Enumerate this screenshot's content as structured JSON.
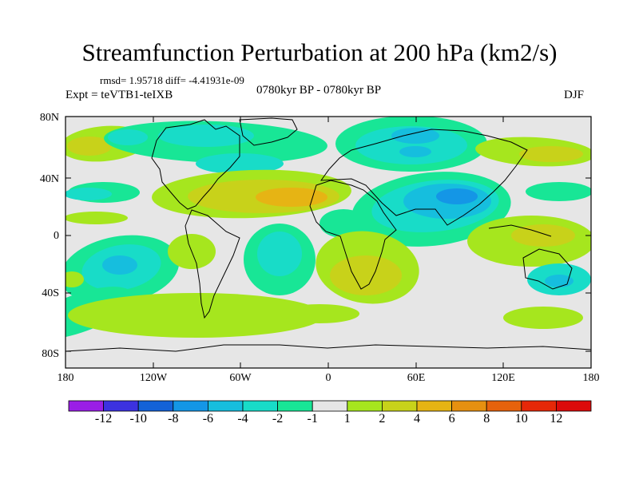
{
  "title": "Streamfunction Perturbation at 200 hPa (km2/s)",
  "stats": "rmsd= 1.95718 diff= -4.41931e-09",
  "experiment": "Expt = teVTB1-teIXB",
  "period": "0780kyr BP - 0780kyr BP",
  "season": "DJF",
  "map": {
    "lat_ticks": [
      "80N",
      "40N",
      "0",
      "40S",
      "80S"
    ],
    "lon_ticks": [
      "180",
      "120W",
      "60W",
      "0",
      "60E",
      "120E",
      "180"
    ]
  },
  "colorbar": {
    "labels": [
      "-12",
      "-10",
      "-8",
      "-6",
      "-4",
      "-2",
      "-1",
      "1",
      "2",
      "4",
      "6",
      "8",
      "10",
      "12"
    ],
    "colors": [
      "#9a1ee6",
      "#3c32e0",
      "#1462d8",
      "#1496e6",
      "#16bede",
      "#18dcc8",
      "#18e696",
      "#e6e6e6",
      "#a6e61e",
      "#c8d21a",
      "#e6b414",
      "#e69010",
      "#e6620c",
      "#e62808",
      "#dc0a0a"
    ]
  },
  "palette": {
    "neutral": "#e6e6e6",
    "green_neg": "#18e696",
    "teal_neg": "#18dcc8",
    "cyan_neg": "#16bede",
    "blue_neg": "#1496e6",
    "lime_pos": "#a6e61e",
    "olive_pos": "#c8d21a",
    "orange_pos": "#e6b414"
  }
}
